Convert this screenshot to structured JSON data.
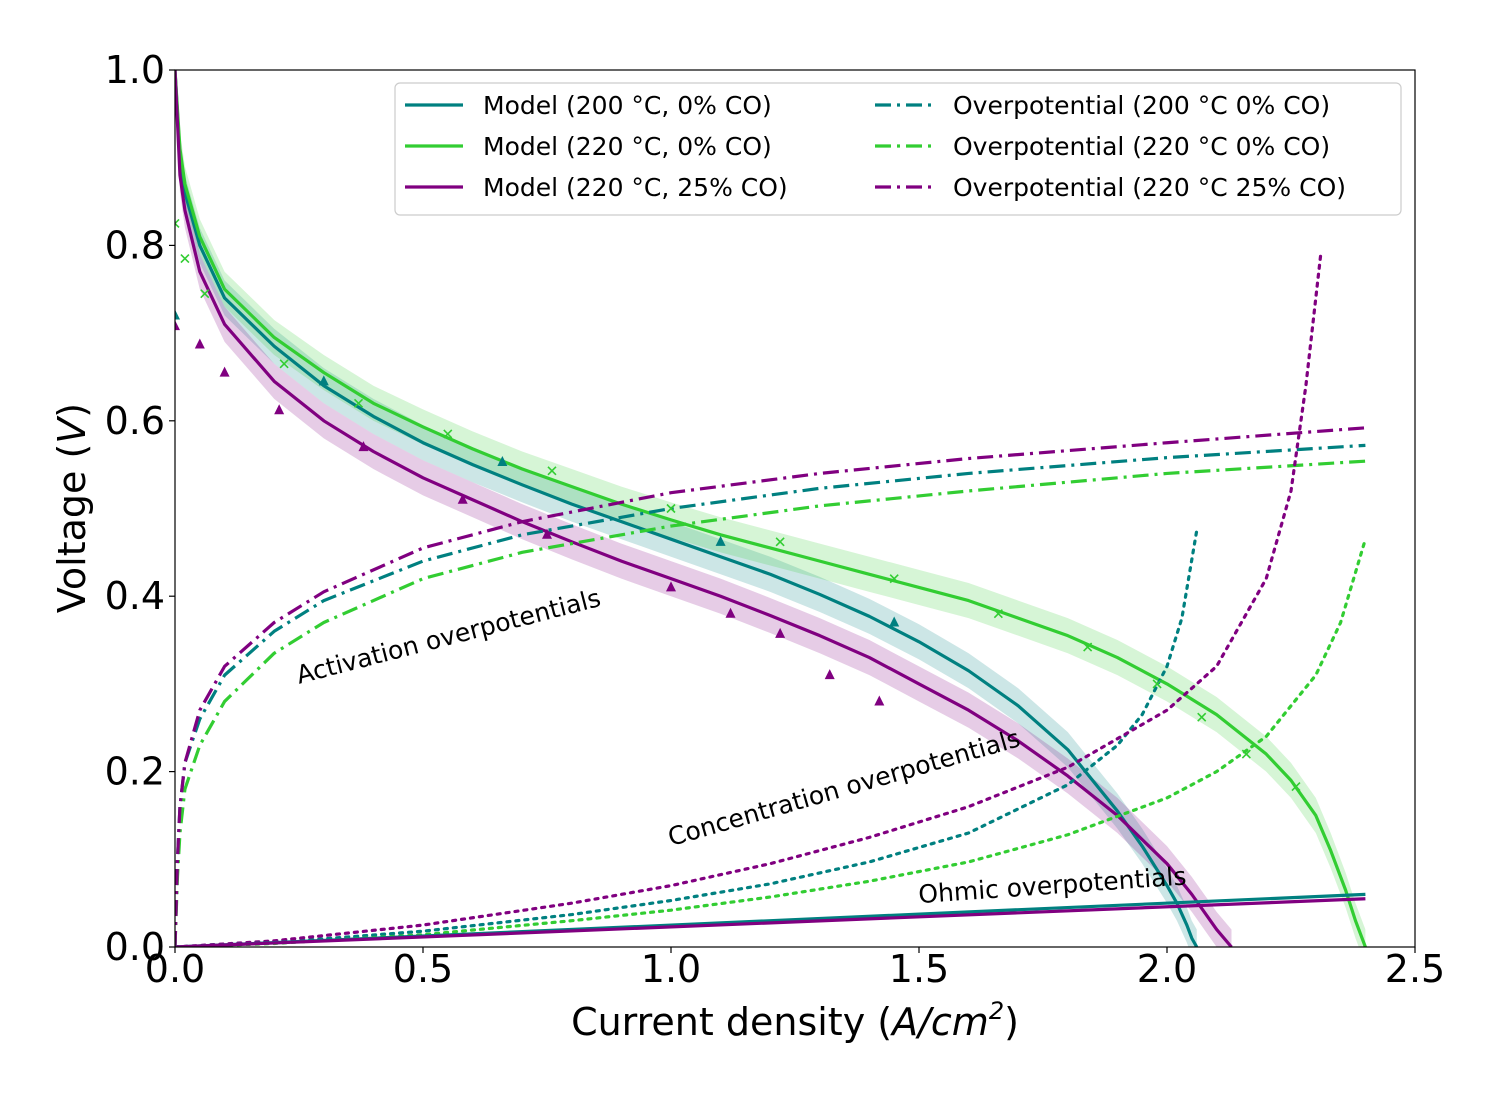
{
  "chart_data": {
    "type": "line",
    "xlabel_text": "Current density (",
    "xlabel_unit": "A/cm",
    "xlabel_exp": "2",
    "xlabel_close": ")",
    "ylabel_text": "Voltage (",
    "ylabel_unit": "V",
    "ylabel_close": ")",
    "xlim": [
      0.0,
      2.5
    ],
    "ylim": [
      0.0,
      1.0
    ],
    "xticks": [
      0.0,
      0.5,
      1.0,
      1.5,
      2.0,
      2.5
    ],
    "yticks": [
      0.0,
      0.2,
      0.4,
      0.6,
      0.8,
      1.0
    ],
    "xtick_labels": [
      "0.0",
      "0.5",
      "1.0",
      "1.5",
      "2.0",
      "2.5"
    ],
    "ytick_labels": [
      "0.0",
      "0.2",
      "0.4",
      "0.6",
      "0.8",
      "1.0"
    ],
    "grid": false,
    "legend_position": "top-right",
    "colors": {
      "teal": "#008080",
      "green": "#32cd32",
      "purple": "#800080"
    },
    "annotations": [
      {
        "text": "Activation overpotentials",
        "x": 0.25,
        "y": 0.3,
        "angle": 14.5
      },
      {
        "text": "Concentration overpotentials",
        "x": 1.0,
        "y": 0.115,
        "angle": 16
      },
      {
        "text": "Ohmic overpotentials",
        "x": 1.5,
        "y": 0.05,
        "angle": 4
      }
    ],
    "series": [
      {
        "name": "Model (200 °C, 0% CO)",
        "color": "teal",
        "style": "solid",
        "band": 0.02,
        "x": [
          0.0,
          0.01,
          0.02,
          0.05,
          0.1,
          0.2,
          0.3,
          0.4,
          0.5,
          0.6,
          0.7,
          0.8,
          0.9,
          1.0,
          1.1,
          1.2,
          1.3,
          1.4,
          1.5,
          1.6,
          1.7,
          1.8,
          1.9,
          1.95,
          2.0,
          2.02,
          2.04,
          2.05,
          2.06
        ],
        "y": [
          1.0,
          0.9,
          0.86,
          0.8,
          0.74,
          0.685,
          0.64,
          0.605,
          0.575,
          0.55,
          0.527,
          0.505,
          0.485,
          0.465,
          0.445,
          0.425,
          0.402,
          0.377,
          0.348,
          0.315,
          0.275,
          0.225,
          0.155,
          0.115,
          0.07,
          0.05,
          0.025,
          0.01,
          0.0
        ]
      },
      {
        "name": "Model (220 °C, 0% CO)",
        "color": "green",
        "style": "solid",
        "band": 0.02,
        "x": [
          0.0,
          0.01,
          0.02,
          0.05,
          0.1,
          0.2,
          0.3,
          0.4,
          0.5,
          0.6,
          0.7,
          0.8,
          0.9,
          1.0,
          1.1,
          1.2,
          1.3,
          1.4,
          1.5,
          1.6,
          1.7,
          1.8,
          1.9,
          2.0,
          2.1,
          2.2,
          2.25,
          2.3,
          2.33,
          2.36,
          2.38,
          2.4
        ],
        "y": [
          1.0,
          0.91,
          0.87,
          0.81,
          0.75,
          0.695,
          0.655,
          0.62,
          0.593,
          0.568,
          0.545,
          0.525,
          0.505,
          0.487,
          0.47,
          0.455,
          0.44,
          0.425,
          0.41,
          0.395,
          0.375,
          0.355,
          0.33,
          0.3,
          0.265,
          0.22,
          0.19,
          0.15,
          0.11,
          0.065,
          0.03,
          0.0
        ]
      },
      {
        "name": "Model (220 °C, 25% CO)",
        "color": "purple",
        "style": "solid",
        "band": 0.02,
        "x": [
          0.0,
          0.01,
          0.02,
          0.05,
          0.1,
          0.2,
          0.3,
          0.4,
          0.5,
          0.6,
          0.7,
          0.8,
          0.9,
          1.0,
          1.1,
          1.2,
          1.3,
          1.4,
          1.5,
          1.6,
          1.7,
          1.8,
          1.9,
          2.0,
          2.05,
          2.1,
          2.13
        ],
        "y": [
          1.0,
          0.88,
          0.84,
          0.77,
          0.71,
          0.645,
          0.6,
          0.565,
          0.535,
          0.51,
          0.485,
          0.462,
          0.44,
          0.42,
          0.4,
          0.378,
          0.355,
          0.33,
          0.3,
          0.27,
          0.235,
          0.195,
          0.15,
          0.095,
          0.06,
          0.02,
          0.0
        ]
      },
      {
        "name": "Overpotential (200 °C 0% CO)",
        "color": "teal",
        "style": "dashdot",
        "x": [
          0.0,
          0.005,
          0.01,
          0.02,
          0.05,
          0.1,
          0.2,
          0.3,
          0.5,
          0.7,
          1.0,
          1.3,
          1.6,
          2.0,
          2.4
        ],
        "y": [
          0.0,
          0.1,
          0.16,
          0.21,
          0.26,
          0.31,
          0.36,
          0.395,
          0.44,
          0.47,
          0.5,
          0.523,
          0.54,
          0.558,
          0.572
        ]
      },
      {
        "name": "Overpotential (220 °C 0% CO)",
        "color": "green",
        "style": "dashdot",
        "x": [
          0.0,
          0.005,
          0.01,
          0.02,
          0.05,
          0.1,
          0.2,
          0.3,
          0.5,
          0.7,
          1.0,
          1.3,
          1.6,
          2.0,
          2.4
        ],
        "y": [
          0.0,
          0.08,
          0.13,
          0.18,
          0.23,
          0.28,
          0.335,
          0.37,
          0.42,
          0.45,
          0.48,
          0.503,
          0.52,
          0.54,
          0.554
        ]
      },
      {
        "name": "Overpotential (220 °C 25% CO)",
        "color": "purple",
        "style": "dashdot",
        "x": [
          0.0,
          0.005,
          0.01,
          0.02,
          0.05,
          0.1,
          0.2,
          0.3,
          0.5,
          0.7,
          1.0,
          1.3,
          1.6,
          2.0,
          2.4
        ],
        "y": [
          0.0,
          0.1,
          0.16,
          0.21,
          0.27,
          0.32,
          0.37,
          0.405,
          0.455,
          0.485,
          0.518,
          0.54,
          0.557,
          0.575,
          0.592
        ]
      },
      {
        "color": "teal",
        "style": "dotted",
        "x": [
          0.0,
          0.2,
          0.5,
          0.8,
          1.0,
          1.2,
          1.4,
          1.6,
          1.8,
          1.9,
          1.95,
          2.0,
          2.03,
          2.06
        ],
        "y": [
          0.0,
          0.005,
          0.018,
          0.037,
          0.053,
          0.072,
          0.097,
          0.13,
          0.185,
          0.23,
          0.265,
          0.32,
          0.375,
          0.475
        ]
      },
      {
        "color": "green",
        "style": "dotted",
        "x": [
          0.0,
          0.2,
          0.5,
          0.8,
          1.0,
          1.2,
          1.4,
          1.6,
          1.8,
          2.0,
          2.1,
          2.2,
          2.3,
          2.35,
          2.4
        ],
        "y": [
          0.0,
          0.004,
          0.014,
          0.03,
          0.042,
          0.057,
          0.075,
          0.097,
          0.128,
          0.17,
          0.2,
          0.24,
          0.31,
          0.37,
          0.465
        ]
      },
      {
        "color": "purple",
        "style": "dotted",
        "x": [
          0.0,
          0.2,
          0.5,
          0.8,
          1.0,
          1.2,
          1.4,
          1.6,
          1.8,
          2.0,
          2.1,
          2.2,
          2.25,
          2.28,
          2.31
        ],
        "y": [
          0.0,
          0.007,
          0.025,
          0.05,
          0.07,
          0.095,
          0.125,
          0.16,
          0.205,
          0.27,
          0.32,
          0.42,
          0.52,
          0.64,
          0.79
        ]
      },
      {
        "color": "teal",
        "style": "solid",
        "x": [
          0.0,
          2.4
        ],
        "y": [
          0.0,
          0.06
        ]
      },
      {
        "color": "purple",
        "style": "solid",
        "x": [
          0.0,
          2.4
        ],
        "y": [
          0.0,
          0.055
        ]
      },
      {
        "color": "teal",
        "style": "markers",
        "marker": "triangle",
        "x": [
          0.0,
          0.3,
          0.66,
          1.1,
          1.45
        ],
        "y": [
          0.72,
          0.645,
          0.553,
          0.462,
          0.37
        ]
      },
      {
        "color": "green",
        "style": "markers",
        "marker": "x",
        "x": [
          0.0,
          0.02,
          0.06,
          0.22,
          0.37,
          0.55,
          0.76,
          1.0,
          1.22,
          1.45,
          1.66,
          1.84,
          1.98,
          2.07,
          2.16,
          2.26
        ],
        "y": [
          0.825,
          0.785,
          0.745,
          0.665,
          0.62,
          0.585,
          0.543,
          0.5,
          0.462,
          0.42,
          0.38,
          0.342,
          0.3,
          0.262,
          0.22,
          0.183
        ]
      },
      {
        "color": "purple",
        "style": "markers",
        "marker": "triangle",
        "x": [
          0.0,
          0.05,
          0.1,
          0.21,
          0.38,
          0.58,
          0.75,
          1.0,
          1.12,
          1.22,
          1.32,
          1.42
        ],
        "y": [
          0.708,
          0.687,
          0.655,
          0.612,
          0.57,
          0.51,
          0.47,
          0.41,
          0.38,
          0.357,
          0.31,
          0.28
        ]
      }
    ]
  }
}
